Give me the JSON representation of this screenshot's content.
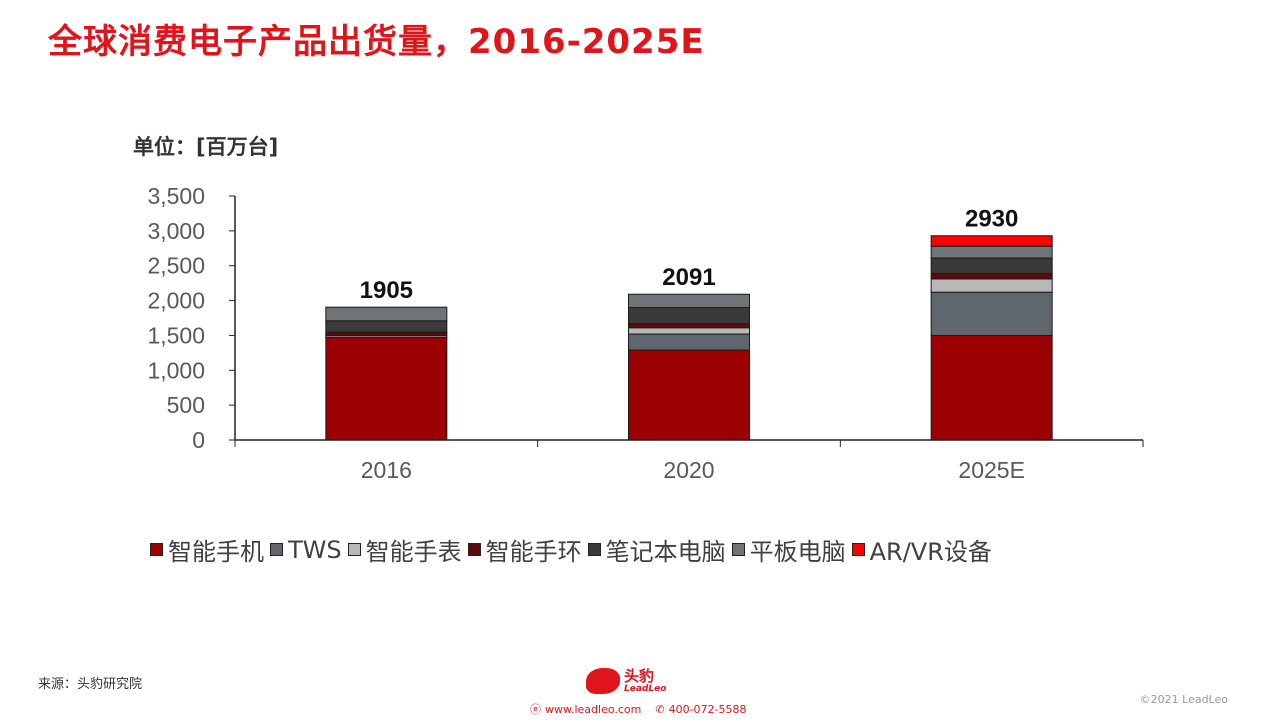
{
  "title": "全球消费电子产品出货量，2016-2025E",
  "unit_label": "单位：[百万台]",
  "source": "来源：头豹研究院",
  "footer": {
    "logo_cn": "头豹",
    "logo_en": "LeadLeo",
    "website": "www.leadleo.com",
    "phone": "400-072-5588",
    "copyright": "©2021 LeadLeo"
  },
  "colors": {
    "title": "#e0151c",
    "accent": "#e0151c"
  },
  "chart_data": {
    "type": "bar",
    "stacked": true,
    "categories": [
      "2016",
      "2020",
      "2025E"
    ],
    "totals": [
      1905,
      2091,
      2930
    ],
    "ylim": [
      0,
      3500
    ],
    "yticks": [
      0,
      500,
      1000,
      1500,
      2000,
      2500,
      3000,
      3500
    ],
    "ytick_labels": [
      "0",
      "500",
      "1,000",
      "1,500",
      "2,000",
      "2,500",
      "3,000",
      "3,500"
    ],
    "legend_position": "bottom",
    "grid": false,
    "series": [
      {
        "name": "智能手机",
        "color": "#9c0000",
        "values": [
          1470,
          1290,
          1500
        ]
      },
      {
        "name": "TWS",
        "color": "#5f666d",
        "values": [
          0,
          230,
          620
        ]
      },
      {
        "name": "智能手表",
        "color": "#b8b8b8",
        "values": [
          25,
          90,
          190
        ]
      },
      {
        "name": "智能手环",
        "color": "#5c0a0a",
        "values": [
          50,
          60,
          80
        ]
      },
      {
        "name": "笔记本电脑",
        "color": "#3a3a3a",
        "values": [
          165,
          230,
          220
        ]
      },
      {
        "name": "平板电脑",
        "color": "#6e7478",
        "values": [
          195,
          191,
          170
        ]
      },
      {
        "name": "AR/VR设备",
        "color": "#ff0000",
        "values": [
          0,
          0,
          150
        ]
      }
    ]
  }
}
